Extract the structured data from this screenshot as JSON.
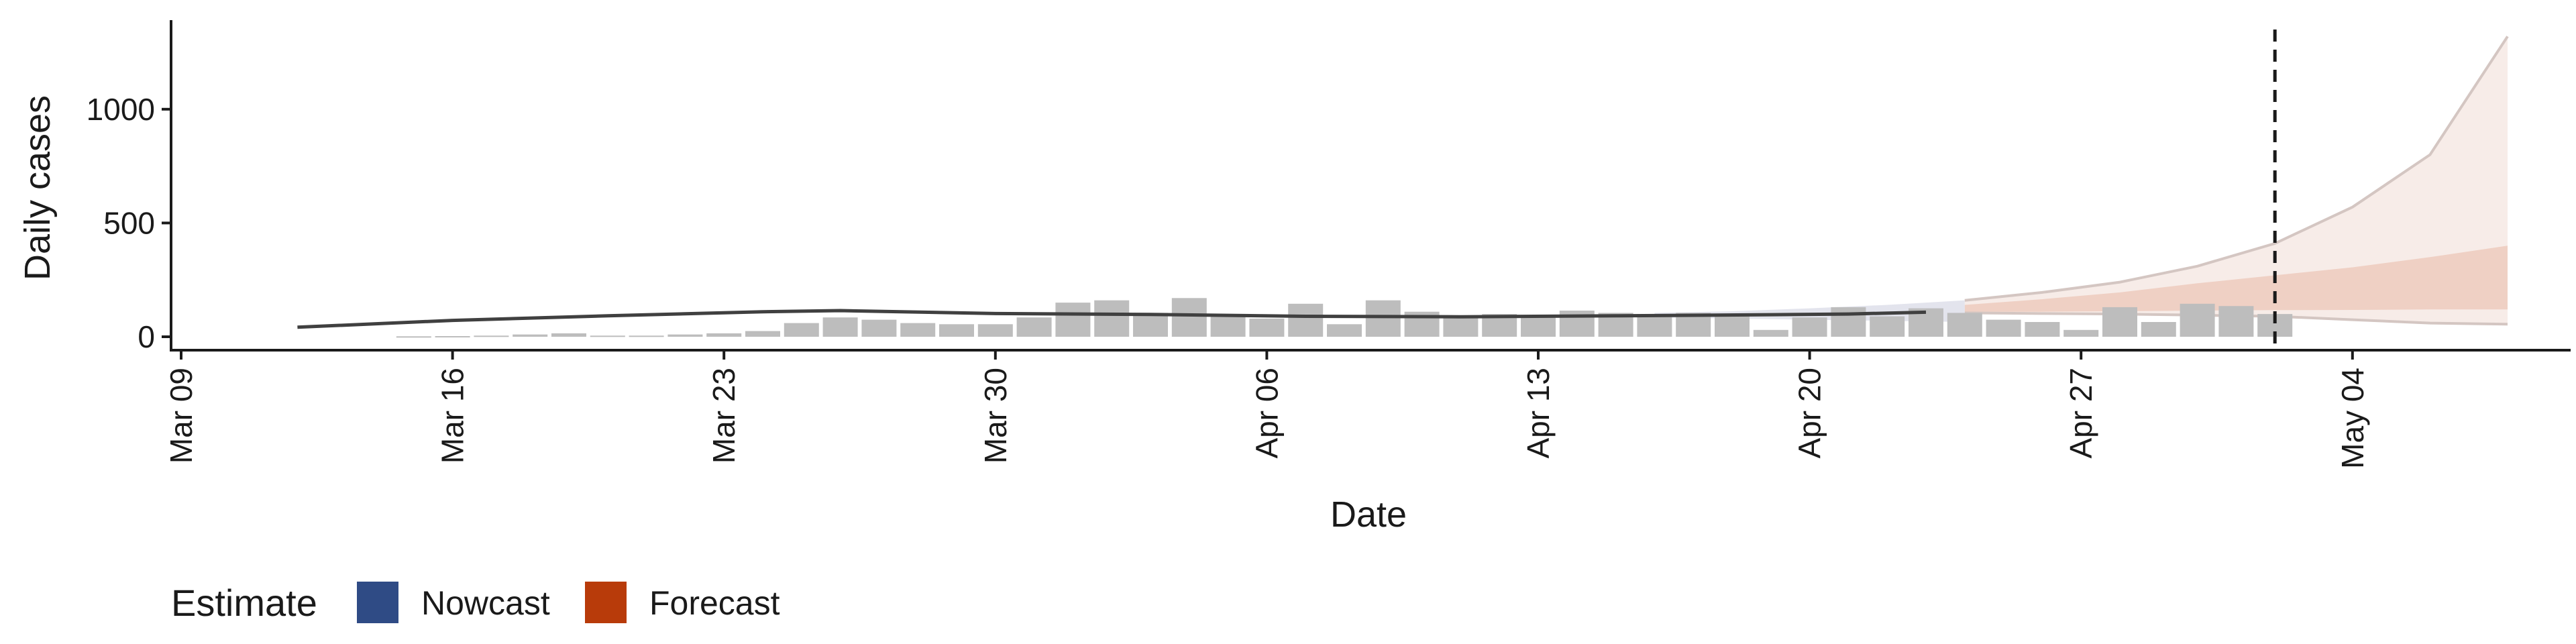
{
  "chart_data": {
    "type": "bar",
    "title": "",
    "xlabel": "Date",
    "ylabel": "Daily cases",
    "x_ticks": [
      "Mar 09",
      "Mar 16",
      "Mar 23",
      "Mar 30",
      "Apr 06",
      "Apr 13",
      "Apr 20",
      "Apr 27",
      "May 04"
    ],
    "y_ticks": [
      "0",
      "500",
      "1000"
    ],
    "ylim": [
      -60,
      1400
    ],
    "xlim": [
      "2020-03-09",
      "2020-05-10"
    ],
    "grid": false,
    "x_tick_angle": 90,
    "reported_cases": {
      "dates": [
        "2020-03-15",
        "2020-03-16",
        "2020-03-17",
        "2020-03-18",
        "2020-03-19",
        "2020-03-20",
        "2020-03-21",
        "2020-03-22",
        "2020-03-23",
        "2020-03-24",
        "2020-03-25",
        "2020-03-26",
        "2020-03-27",
        "2020-03-28",
        "2020-03-29",
        "2020-03-30",
        "2020-03-31",
        "2020-04-01",
        "2020-04-02",
        "2020-04-03",
        "2020-04-04",
        "2020-04-05",
        "2020-04-06",
        "2020-04-07",
        "2020-04-08",
        "2020-04-09",
        "2020-04-10",
        "2020-04-11",
        "2020-04-12",
        "2020-04-13",
        "2020-04-14",
        "2020-04-15",
        "2020-04-16",
        "2020-04-17",
        "2020-04-18",
        "2020-04-19",
        "2020-04-20",
        "2020-04-21",
        "2020-04-22",
        "2020-04-23",
        "2020-04-24",
        "2020-04-25",
        "2020-04-26",
        "2020-04-27",
        "2020-04-28",
        "2020-04-29",
        "2020-04-30",
        "2020-05-01",
        "2020-05-02"
      ],
      "values": [
        2,
        3,
        5,
        10,
        15,
        5,
        5,
        10,
        15,
        25,
        60,
        85,
        75,
        60,
        55,
        55,
        85,
        150,
        160,
        105,
        170,
        100,
        80,
        145,
        55,
        160,
        110,
        85,
        100,
        95,
        115,
        105,
        95,
        105,
        90,
        30,
        85,
        130,
        90,
        125,
        105,
        75,
        65,
        30,
        130,
        65,
        145,
        135,
        100
      ],
      "color": "#bdbdbd"
    },
    "estimate_line": {
      "x": [
        "2020-03-12",
        "2020-03-16",
        "2020-03-20",
        "2020-03-24",
        "2020-03-26",
        "2020-03-30",
        "2020-04-03",
        "2020-04-07",
        "2020-04-11",
        "2020-04-15",
        "2020-04-19",
        "2020-04-21",
        "2020-04-23"
      ],
      "y": [
        42,
        72,
        92,
        110,
        115,
        102,
        98,
        90,
        88,
        92,
        97,
        100,
        108
      ],
      "color": "#404040"
    },
    "nowcast_band": {
      "x": [
        "2020-04-16",
        "2020-04-18",
        "2020-04-20",
        "2020-04-22",
        "2020-04-24"
      ],
      "lower": [
        85,
        80,
        75,
        70,
        65
      ],
      "upper": [
        105,
        112,
        125,
        140,
        160
      ],
      "color": "#dcdde8"
    },
    "forecast": {
      "x": [
        "2020-04-24",
        "2020-04-26",
        "2020-04-28",
        "2020-04-30",
        "2020-05-02",
        "2020-05-04",
        "2020-05-06",
        "2020-05-08"
      ],
      "lower_90": [
        105,
        102,
        100,
        95,
        90,
        75,
        60,
        55
      ],
      "upper_90": [
        160,
        195,
        240,
        310,
        410,
        570,
        800,
        1320
      ],
      "lower_50": [
        110,
        110,
        112,
        115,
        117,
        118,
        120,
        120
      ],
      "upper_50": [
        140,
        165,
        195,
        235,
        270,
        305,
        350,
        400
      ],
      "color_outer": "#f7ece8",
      "color_inner": "#efd0c4",
      "color_edge": "#d4c6c2"
    },
    "vline_date": "2020-05-02",
    "legend": {
      "title": "Estimate",
      "position": "bottom-left",
      "items": [
        {
          "label": "Nowcast",
          "color": "#2f4b85"
        },
        {
          "label": "Forecast",
          "color": "#b83b0a"
        }
      ]
    }
  }
}
